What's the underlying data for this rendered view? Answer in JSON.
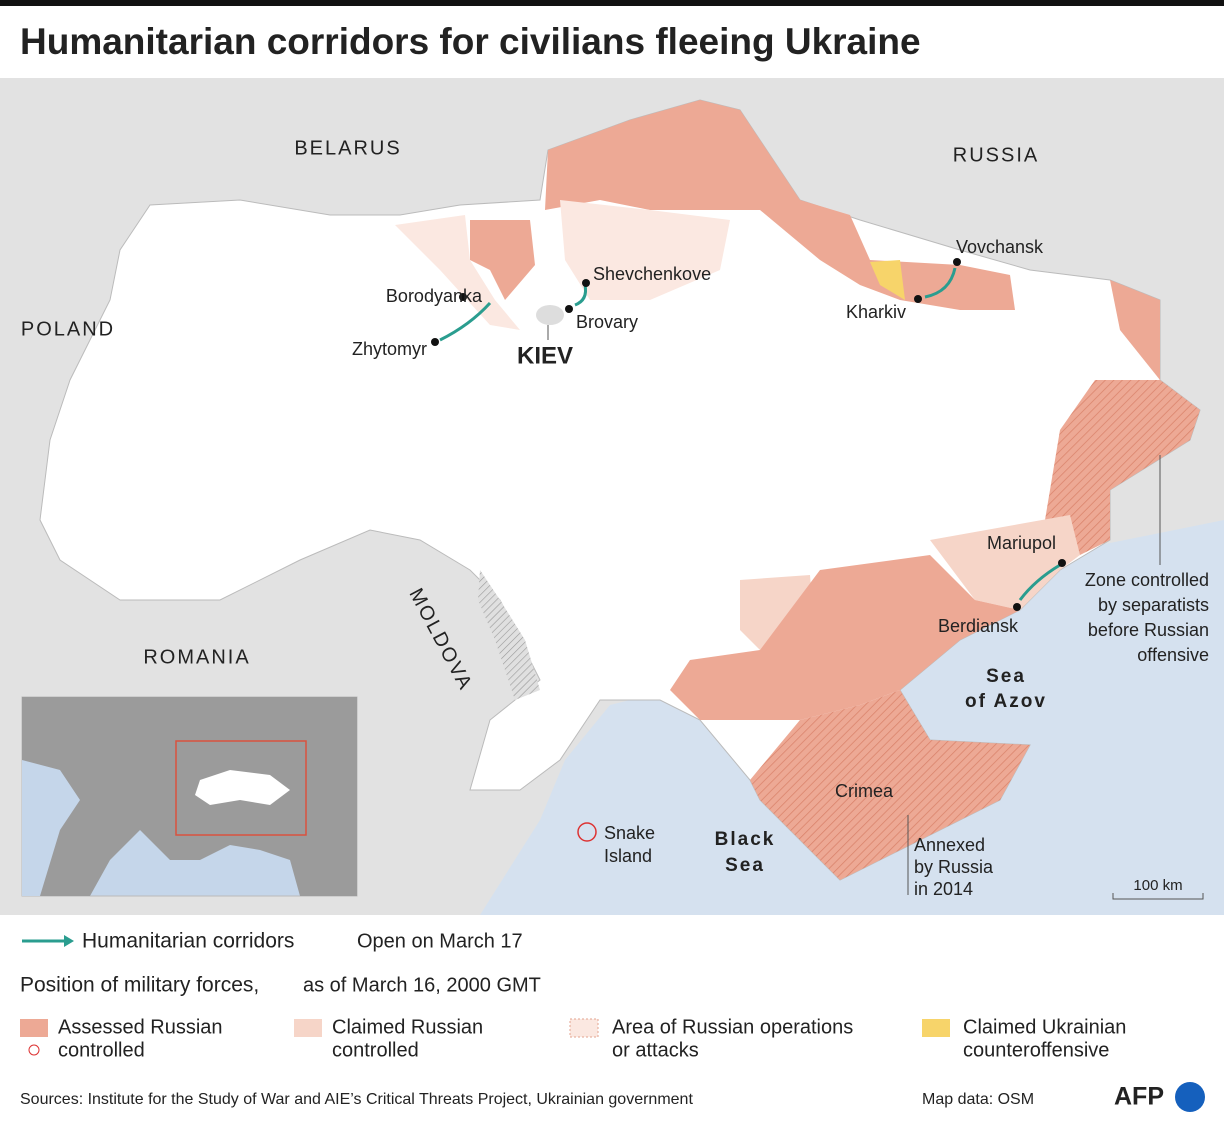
{
  "title": "Humanitarian corridors for civilians fleeing Ukraine",
  "map": {
    "countries": [
      "BELARUS",
      "RUSSIA",
      "POLAND",
      "ROMANIA",
      "MOLDOVA"
    ],
    "capital": "KIEV",
    "cities": [
      "Borodyanka",
      "Zhytomyr",
      "Shevchenkove",
      "Brovary",
      "Vovchansk",
      "Kharkiv",
      "Mariupol",
      "Berdiansk"
    ],
    "region": "Crimea",
    "seas": [
      {
        "lines": [
          "Sea",
          "of Azov"
        ]
      },
      {
        "lines": [
          "Black",
          "Sea"
        ]
      }
    ],
    "island": {
      "lines": [
        "Snake",
        "Island"
      ]
    },
    "annotations": [
      {
        "lines": [
          "Zone controlled",
          "by separatists",
          "before Russian",
          "offensive"
        ]
      },
      {
        "lines": [
          "Annexed",
          "by Russia",
          "in 2014"
        ]
      }
    ],
    "scale": "100 km"
  },
  "legend": {
    "corridors": {
      "label": "Humanitarian corridors",
      "note": "Open on March 17"
    },
    "forces": {
      "title": "Position of military forces,",
      "subtitle": "as of March 16, 2000 GMT"
    },
    "items": [
      {
        "lines": [
          "Assessed Russian",
          "controlled"
        ]
      },
      {
        "lines": [
          "Claimed Russian",
          "controlled"
        ]
      },
      {
        "lines": [
          "Area of Russian operations",
          "or attacks"
        ]
      },
      {
        "lines": [
          "Claimed Ukrainian",
          "counteroffensive"
        ]
      }
    ]
  },
  "footer": {
    "sources": "Sources: Institute for the Study of War and AIE’s Critical Threats Project, Ukrainian government",
    "map_data": "Map data: OSM",
    "logo": "AFP"
  }
}
